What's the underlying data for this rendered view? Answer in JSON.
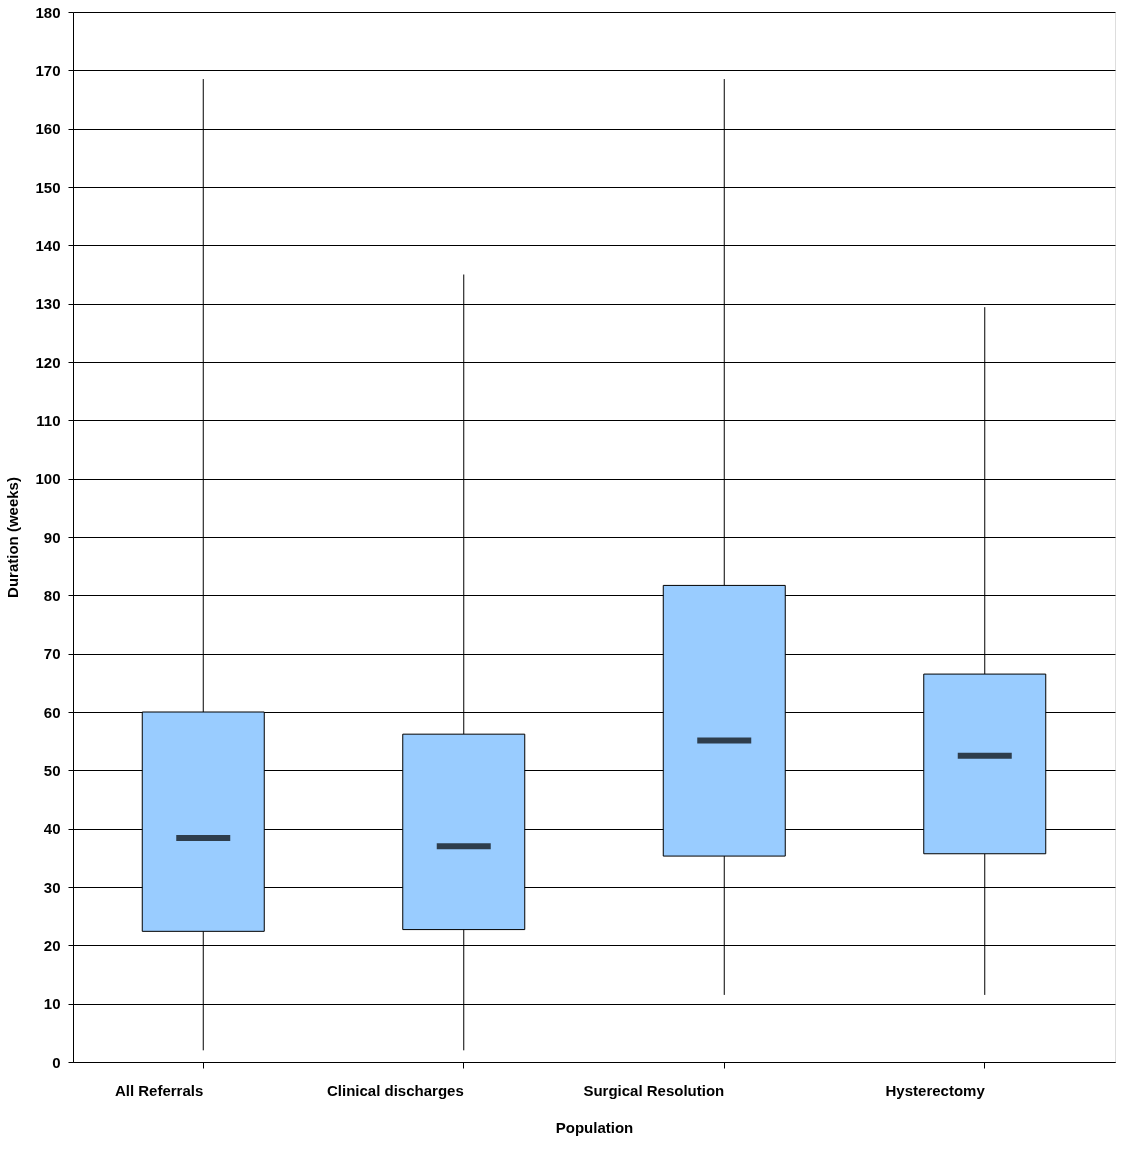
{
  "chart_data": {
    "type": "box",
    "xlabel": "Population",
    "ylabel": "Duration (weeks)",
    "categories": [
      "All Referrals",
      "Clinical discharges",
      "Surgical Resolution",
      "Hysterectomy"
    ],
    "color": "#99ccff",
    "boxes": [
      {
        "low": 2,
        "q1": 22.4,
        "median": 38.4,
        "q3": 60,
        "high": 168.5
      },
      {
        "low": 2,
        "q1": 22.7,
        "median": 37,
        "q3": 56.2,
        "high": 135
      },
      {
        "low": 11.5,
        "q1": 35.3,
        "median": 55.1,
        "q3": 81.7,
        "high": 168.5
      },
      {
        "low": 11.5,
        "q1": 35.7,
        "median": 52.5,
        "q3": 66.5,
        "high": 129.4
      }
    ],
    "ylim": [
      0,
      180
    ],
    "yticks": [
      0,
      10,
      20,
      30,
      40,
      50,
      60,
      70,
      80,
      90,
      100,
      110,
      120,
      130,
      140,
      150,
      160,
      170,
      180
    ],
    "grid": "y"
  }
}
